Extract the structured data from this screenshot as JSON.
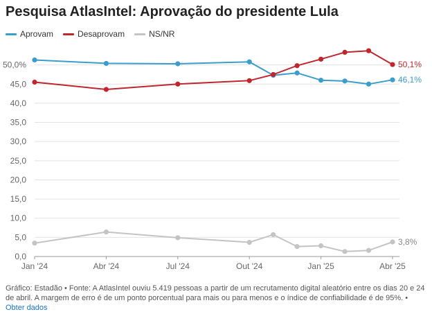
{
  "title": "Pesquisa AtlasIntel: Aprovação do presidente Lula",
  "footer": {
    "text": "Gráfico: Estadão • Fonte: A AtlasIntel ouviu 5.419 pessoas a partir de um recrutamento digital aleatório entre os dias 20 e 24 de abril. A margem de erro é de um ponto porcentual para mais ou para menos e o índice de confiabilidade é de 95%. •",
    "link": "Obter dados"
  },
  "chart_data": {
    "type": "line",
    "title": "Pesquisa AtlasIntel: Aprovação do presidente Lula",
    "xlabel": "",
    "ylabel": "",
    "ylim": [
      0,
      55
    ],
    "yticks": [
      "0,0",
      "5,0",
      "10,0",
      "15,0",
      "20,0",
      "25,0",
      "30,0",
      "35,0",
      "40,0",
      "45,0",
      "50,0%"
    ],
    "x_ticks": [
      "Jan '24",
      "Abr '24",
      "Jul '24",
      "Out '24",
      "Jan '25",
      "Abr '25"
    ],
    "x": [
      "2024-01",
      "2024-04",
      "2024-07",
      "2024-10",
      "2024-11",
      "2024-12",
      "2025-01",
      "2025-02",
      "2025-03",
      "2025-04"
    ],
    "legend_position": "top-left",
    "grid": true,
    "series": [
      {
        "name": "Aprovam",
        "color": "#3a9dca",
        "values": [
          51.3,
          50.4,
          50.3,
          50.8,
          47.3,
          47.9,
          46.0,
          45.8,
          45.0,
          46.1
        ],
        "end_label": "46,1%"
      },
      {
        "name": "Desaprovam",
        "color": "#c0262d",
        "values": [
          45.5,
          43.6,
          45.0,
          45.9,
          47.5,
          49.8,
          51.5,
          53.3,
          53.7,
          50.1
        ],
        "end_label": "50,1%"
      },
      {
        "name": "NS/NR",
        "color": "#c4c4c4",
        "values": [
          3.5,
          6.4,
          4.9,
          3.7,
          5.7,
          2.6,
          2.8,
          1.3,
          1.6,
          3.8
        ],
        "end_label": "3,8%"
      }
    ]
  }
}
